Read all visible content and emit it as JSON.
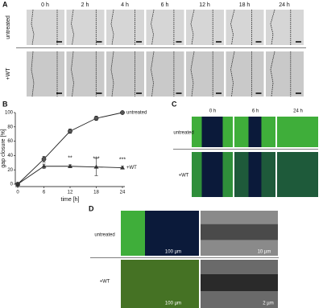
{
  "panel_labels": [
    "A",
    "B",
    "C",
    "D"
  ],
  "panel_a": {
    "time_labels": [
      "0 h",
      "2 h",
      "4 h",
      "6 h",
      "12 h",
      "18 h",
      "24 h"
    ],
    "row_labels": [
      "untreated",
      "+WT"
    ]
  },
  "chart_data": {
    "type": "line",
    "xlabel": "time [h]",
    "ylabel": "gap closure [%]",
    "x": [
      0,
      6,
      12,
      18,
      24
    ],
    "xlim": [
      0,
      24
    ],
    "xticks": [
      0,
      6,
      12,
      18,
      24
    ],
    "ylim": [
      0,
      100
    ],
    "yticks": [
      0,
      20,
      40,
      60,
      80,
      100
    ],
    "series": [
      {
        "name": "untreated",
        "color": "#222222",
        "marker": "circle",
        "values": [
          0,
          35,
          74,
          92,
          100
        ],
        "errors": [
          0,
          4,
          3,
          3,
          1
        ]
      },
      {
        "name": "+WT",
        "color": "#222222",
        "marker": "triangle",
        "values": [
          0,
          25,
          25,
          24,
          23
        ],
        "errors": [
          0,
          3,
          2,
          12,
          2
        ]
      }
    ],
    "annotations": [
      {
        "text": "**",
        "x": 12
      },
      {
        "text": "***",
        "x": 18
      },
      {
        "text": "***",
        "x": 24
      }
    ]
  },
  "panel_c": {
    "time_labels": [
      "0 h",
      "6 h",
      "24 h"
    ],
    "row_labels": [
      "untreated",
      "+WT"
    ]
  },
  "panel_d": {
    "row_labels": [
      "untreated",
      "+WT"
    ],
    "scale_labels": [
      "100 µm",
      "10 µm",
      "100 µm",
      "2 µm"
    ]
  }
}
